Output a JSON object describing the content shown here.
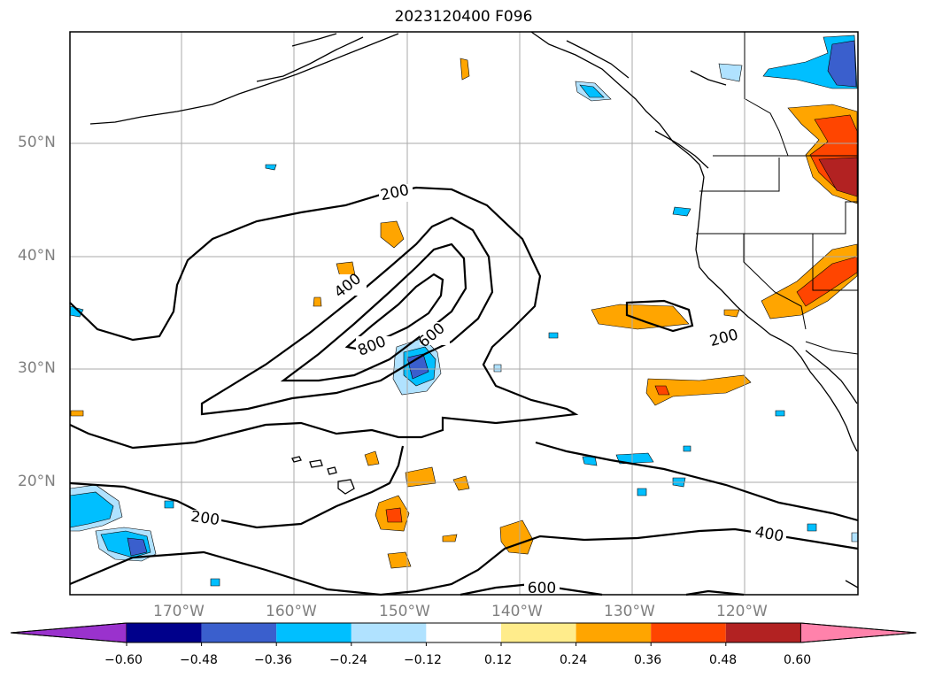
{
  "title": "2023120400 F096",
  "lat_labels": [
    "50°N",
    "40°N",
    "30°N",
    "20°N"
  ],
  "lon_labels": [
    "170°W",
    "160°W",
    "150°W",
    "140°W",
    "130°W",
    "120°W"
  ],
  "contour_labels": [
    "200",
    "200",
    "200",
    "400",
    "400",
    "600",
    "600",
    "800"
  ],
  "colorbar": {
    "tick_labels": [
      "−0.60",
      "−0.48",
      "−0.36",
      "−0.24",
      "−0.12",
      "0.12",
      "0.24",
      "0.36",
      "0.48",
      "0.60"
    ],
    "colors": [
      "#9a32cd",
      "#00008b",
      "#3a5fcd",
      "#00bfff",
      "#b0e2ff",
      "#ffffff",
      "#ffec8b",
      "#ffa500",
      "#ff4500",
      "#b22222",
      "#ff82ab"
    ]
  }
}
